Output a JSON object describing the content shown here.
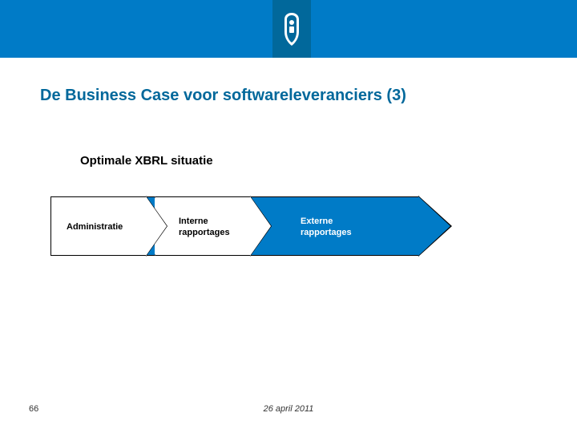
{
  "header": {
    "band_color": "#007bc7",
    "logo_bg_color": "#01689b"
  },
  "title": {
    "text": "De Business Case voor softwareleveranciers (3)",
    "color": "#01689b",
    "fontsize": 20
  },
  "subtitle": {
    "text": "Optimale XBRL situatie",
    "fontsize": 15
  },
  "diagram": {
    "type": "process-arrow",
    "background_arrow_color": "#007bc7",
    "chevron_fill": "#ffffff",
    "border_color": "#000000",
    "steps": [
      {
        "label": "Administratie",
        "text_color": "#000000"
      },
      {
        "label": "Interne\nrapportages",
        "text_color": "#000000"
      },
      {
        "label": "Externe\nrapportages",
        "text_color": "#ffffff"
      }
    ]
  },
  "footer": {
    "page_number": "66",
    "date": "26 april 2011"
  }
}
